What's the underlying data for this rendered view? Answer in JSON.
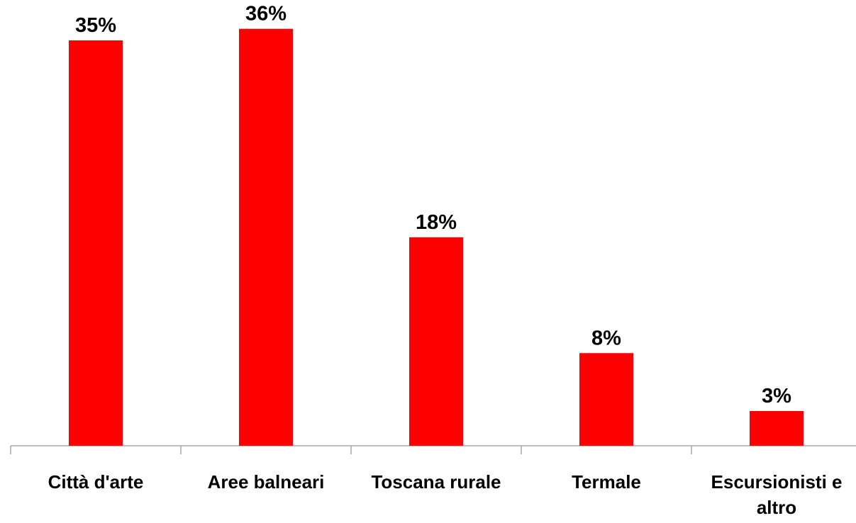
{
  "chart_data": {
    "type": "bar",
    "categories": [
      "Città d'arte",
      "Aree balneari",
      "Toscana rurale",
      "Termale",
      "Escursionisti e altro"
    ],
    "values": [
      35,
      36,
      18,
      8,
      3
    ],
    "value_labels": [
      "35%",
      "36%",
      "18%",
      "8%",
      "3%"
    ],
    "color": "#ff0000",
    "ylim": [
      0,
      38
    ]
  }
}
